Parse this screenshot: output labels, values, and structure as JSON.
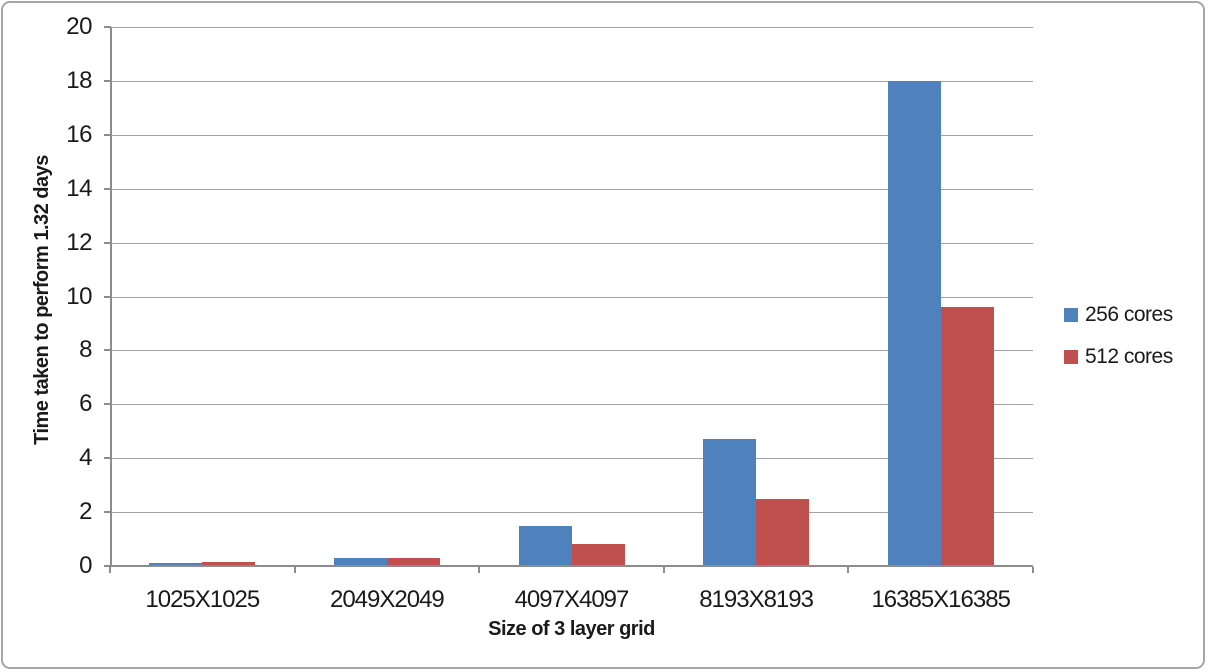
{
  "chart_data": {
    "type": "bar",
    "title": "",
    "xlabel": "Size of 3 layer grid",
    "ylabel": "Time taken to perform 1.32 days",
    "categories": [
      "1025X1025",
      "2049X2049",
      "4097X4097",
      "8193X8193",
      "16385X16385"
    ],
    "series": [
      {
        "name": "256 cores",
        "color": "#4F81BD",
        "values": [
          0.1,
          0.3,
          1.5,
          4.7,
          18
        ]
      },
      {
        "name": "512 cores",
        "color": "#C0504D",
        "values": [
          0.15,
          0.3,
          0.8,
          2.5,
          9.6
        ]
      }
    ],
    "ylim": [
      0,
      20
    ],
    "ytick_step": 2,
    "yticks": [
      0,
      2,
      4,
      6,
      8,
      10,
      12,
      14,
      16,
      18,
      20
    ],
    "grid": "horizontal",
    "legend_position": "right"
  },
  "colors": {
    "gridline": "#a3a3a3",
    "axis": "#8c8c8c",
    "frame_border": "#a6a6a6",
    "text": "#1a1a1a",
    "background": "#ffffff"
  }
}
